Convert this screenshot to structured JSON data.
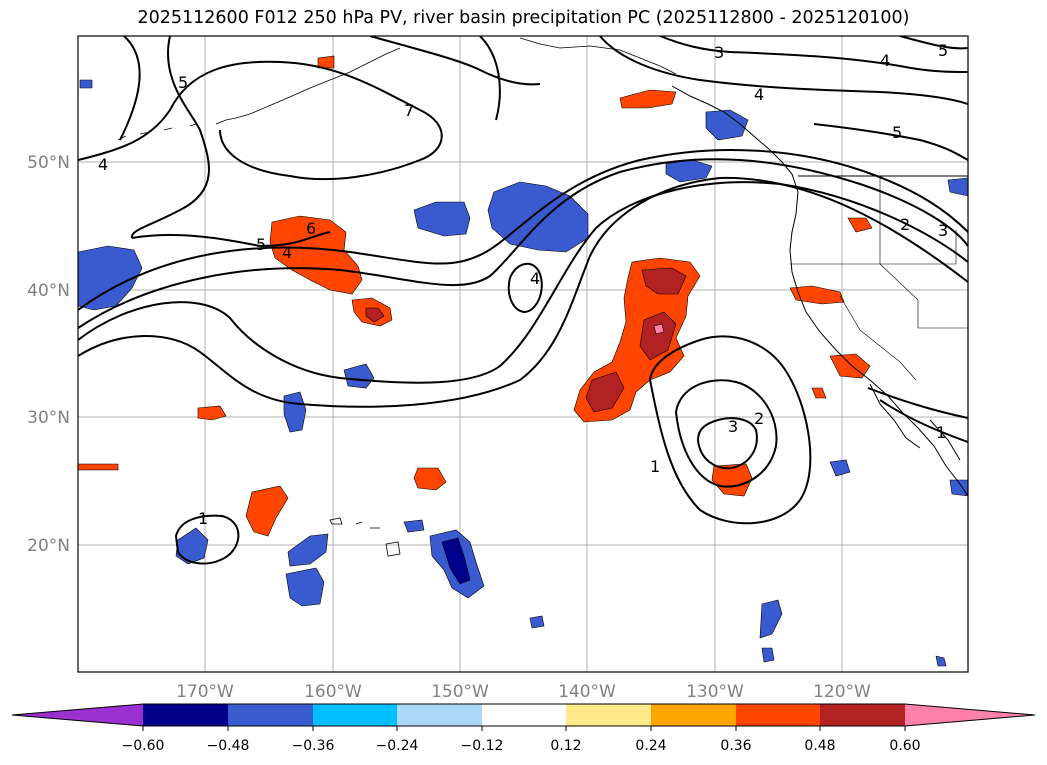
{
  "title": "2025112600 F012 250 hPa PV, river basin precipitation PC (2025112800 - 2025120100)",
  "lat_labels": [
    "50°N",
    "40°N",
    "30°N",
    "20°N"
  ],
  "lon_labels": [
    "170°W",
    "160°W",
    "150°W",
    "140°W",
    "130°W",
    "120°W"
  ],
  "colorbar": {
    "ticks": [
      "−0.60",
      "−0.48",
      "−0.36",
      "−0.24",
      "−0.12",
      "0.12",
      "0.24",
      "0.36",
      "0.48",
      "0.60"
    ],
    "colors": [
      "#9b30d0",
      "#00008b",
      "#3a5bd0",
      "#00bfff",
      "#add8f5",
      "#ffffff",
      "#ffe98a",
      "#ffa500",
      "#ff4500",
      "#b22222",
      "#ff80a8"
    ]
  },
  "contour_labels": {
    "nw5": "5",
    "nw4": "4",
    "nw7": "7",
    "top3": "3",
    "ne4a": "4",
    "ne4b": "4",
    "ne5": "5",
    "ne5b": "5",
    "c6": "6",
    "c5": "5",
    "c4": "4",
    "mid4": "4",
    "r2": "2",
    "r3": "3",
    "s3": "3",
    "s2": "2",
    "s1": "1",
    "w1": "1",
    "mex1": "1"
  }
}
